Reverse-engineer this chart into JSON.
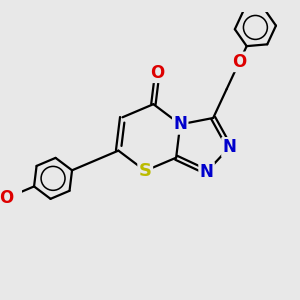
{
  "background_color": "#e8e8e8",
  "bond_color": "#000000",
  "bond_width": 1.6,
  "figsize": [
    3.0,
    3.0
  ],
  "dpi": 100,
  "xlim": [
    0,
    10
  ],
  "ylim": [
    0,
    10
  ]
}
